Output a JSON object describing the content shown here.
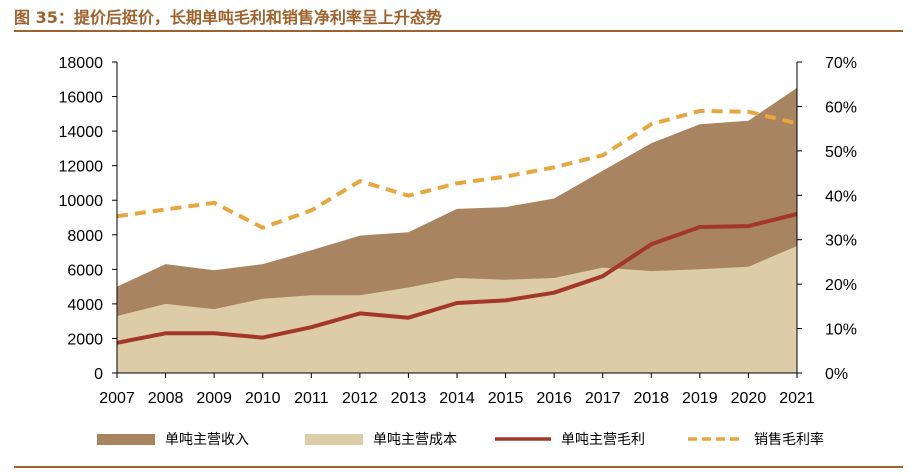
{
  "figure": {
    "title": "图 35：提价后挺价，长期单吨毛利和销售净利率呈上升态势"
  },
  "colors": {
    "accent": "#a0622d",
    "revenue": "#a98461",
    "cost": "#dccca8",
    "profit": "#a3372a",
    "margin": "#e8a63e"
  },
  "chart_data": {
    "type": "area",
    "title": "",
    "categories": [
      "2007",
      "2008",
      "2009",
      "2010",
      "2011",
      "2012",
      "2013",
      "2014",
      "2015",
      "2016",
      "2017",
      "2018",
      "2019",
      "2020",
      "2021"
    ],
    "y_left": {
      "range": [
        0,
        18000
      ],
      "ticks": [
        "0",
        "2000",
        "4000",
        "6000",
        "8000",
        "10000",
        "12000",
        "14000",
        "16000",
        "18000"
      ]
    },
    "y_right": {
      "range": [
        0,
        70
      ],
      "ticks": [
        "0%",
        "10%",
        "20%",
        "30%",
        "40%",
        "50%",
        "60%",
        "70%"
      ]
    },
    "series": [
      {
        "name": "单吨主营收入",
        "kind": "area",
        "axis": "left",
        "values": [
          5000,
          6300,
          5950,
          6300,
          7100,
          7950,
          8150,
          9500,
          9600,
          10100,
          11700,
          13300,
          14400,
          14600,
          16500
        ]
      },
      {
        "name": "单吨主营成本",
        "kind": "area",
        "axis": "left",
        "values": [
          3300,
          4000,
          3700,
          4300,
          4500,
          4500,
          4950,
          5500,
          5400,
          5500,
          6100,
          5900,
          6000,
          6150,
          7350
        ]
      },
      {
        "name": "单吨主营毛利",
        "kind": "line",
        "axis": "left",
        "values": [
          1750,
          2300,
          2300,
          2050,
          2650,
          3450,
          3200,
          4050,
          4200,
          4650,
          5600,
          7450,
          8450,
          8500,
          9200
        ]
      },
      {
        "name": "销售毛利率",
        "kind": "dashed-line",
        "axis": "right",
        "values": [
          35.3,
          36.8,
          38.3,
          32.7,
          36.6,
          43.2,
          39.9,
          42.7,
          44.2,
          46.3,
          49.0,
          56.0,
          59.0,
          58.8,
          56.2
        ]
      }
    ],
    "legend_position": "bottom",
    "grid": false
  }
}
